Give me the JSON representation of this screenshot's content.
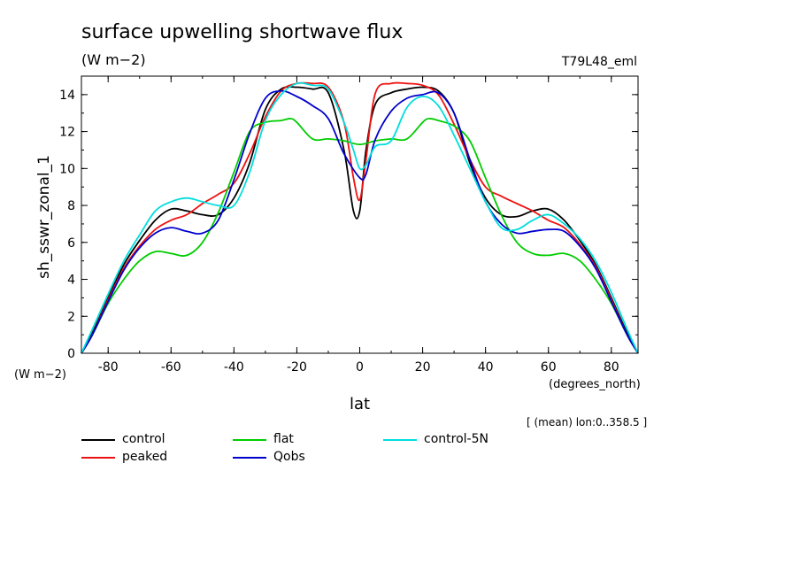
{
  "header": {
    "title": "surface upwelling shortwave flux",
    "units": "(W m−2)",
    "run_id": "T79L48_eml"
  },
  "footer": {
    "mean_note": "[ (mean) lon:0..358.5 ]"
  },
  "chart_data": {
    "type": "line",
    "title": "surface upwelling shortwave flux",
    "xlabel": "lat",
    "ylabel": "sh_sswr_zonal_1",
    "x_units": "(degrees_north)",
    "y_units": "(W m−2)",
    "xlim": [
      -88.5,
      88.5
    ],
    "ylim": [
      0,
      15
    ],
    "xticks": [
      -80,
      -60,
      -40,
      -20,
      0,
      20,
      40,
      60,
      80
    ],
    "yticks": [
      0,
      2,
      4,
      6,
      8,
      10,
      12,
      14
    ],
    "grid": false,
    "legend_position": "bottom",
    "series": [
      {
        "name": "control",
        "color": "#000000",
        "x": [
          -88.5,
          -85,
          -80,
          -75,
          -70,
          -65,
          -60,
          -55,
          -50,
          -45,
          -40,
          -35,
          -30,
          -25,
          -20,
          -15,
          -10,
          -5,
          -2,
          0,
          2,
          5,
          10,
          15,
          20,
          25,
          30,
          35,
          40,
          45,
          50,
          55,
          60,
          65,
          70,
          75,
          80,
          85,
          88.5
        ],
        "y": [
          0,
          1.1,
          3.0,
          4.8,
          6.1,
          7.2,
          7.8,
          7.7,
          7.5,
          7.5,
          8.4,
          10.3,
          13.2,
          14.3,
          14.4,
          14.3,
          14.1,
          11.0,
          7.7,
          7.7,
          11.0,
          13.5,
          14.1,
          14.3,
          14.4,
          14.2,
          13.0,
          10.3,
          8.4,
          7.5,
          7.4,
          7.7,
          7.8,
          7.2,
          6.1,
          4.8,
          3.0,
          1.1,
          0
        ]
      },
      {
        "name": "peaked",
        "color": "#ee1111",
        "x": [
          -88.5,
          -85,
          -80,
          -75,
          -70,
          -65,
          -60,
          -55,
          -50,
          -45,
          -40,
          -35,
          -30,
          -25,
          -20,
          -15,
          -10,
          -5,
          -2,
          0,
          2,
          5,
          10,
          15,
          20,
          25,
          30,
          35,
          40,
          45,
          50,
          55,
          60,
          65,
          70,
          75,
          80,
          85,
          88.5
        ],
        "y": [
          0,
          1.0,
          2.9,
          4.6,
          5.8,
          6.7,
          7.2,
          7.5,
          8.1,
          8.6,
          9.2,
          10.8,
          12.8,
          14.2,
          14.6,
          14.6,
          14.4,
          12.5,
          9.5,
          8.3,
          10.5,
          14.1,
          14.6,
          14.6,
          14.5,
          14.0,
          12.4,
          10.5,
          9.0,
          8.5,
          8.1,
          7.7,
          7.2,
          6.8,
          5.9,
          4.7,
          2.9,
          1.0,
          0
        ]
      },
      {
        "name": "flat",
        "color": "#00cc00",
        "x": [
          -88.5,
          -85,
          -80,
          -75,
          -70,
          -65,
          -60,
          -55,
          -50,
          -45,
          -40,
          -35,
          -30,
          -25,
          -22,
          -20,
          -15,
          -10,
          -5,
          0,
          5,
          10,
          15,
          20,
          22,
          25,
          30,
          35,
          40,
          45,
          50,
          55,
          60,
          65,
          70,
          75,
          80,
          85,
          88.5
        ],
        "y": [
          0,
          1.0,
          2.7,
          4.0,
          5.0,
          5.5,
          5.4,
          5.3,
          6.0,
          7.6,
          9.8,
          12.0,
          12.5,
          12.6,
          12.7,
          12.5,
          11.6,
          11.6,
          11.5,
          11.3,
          11.5,
          11.6,
          11.6,
          12.5,
          12.7,
          12.6,
          12.3,
          11.5,
          9.5,
          7.5,
          6.0,
          5.4,
          5.3,
          5.4,
          5.0,
          4.0,
          2.7,
          1.0,
          0
        ]
      },
      {
        "name": "Qobs",
        "color": "#0000cc",
        "x": [
          -88.5,
          -85,
          -80,
          -75,
          -70,
          -65,
          -60,
          -55,
          -50,
          -45,
          -40,
          -35,
          -30,
          -25,
          -20,
          -15,
          -10,
          -5,
          0,
          2,
          5,
          10,
          15,
          20,
          25,
          30,
          35,
          40,
          45,
          50,
          55,
          60,
          65,
          70,
          75,
          80,
          85,
          88.5
        ],
        "y": [
          0,
          1.0,
          2.8,
          4.5,
          5.7,
          6.5,
          6.8,
          6.6,
          6.5,
          7.2,
          9.4,
          11.9,
          13.8,
          14.2,
          13.9,
          13.4,
          12.7,
          10.8,
          9.5,
          9.7,
          11.6,
          13.1,
          13.8,
          14.0,
          14.1,
          13.0,
          10.5,
          8.2,
          7.0,
          6.5,
          6.6,
          6.7,
          6.6,
          5.8,
          4.6,
          2.8,
          1.0,
          0
        ]
      },
      {
        "name": "control-5N",
        "color": "#00dddd",
        "x": [
          -88.5,
          -85,
          -80,
          -75,
          -70,
          -65,
          -60,
          -55,
          -50,
          -45,
          -40,
          -35,
          -30,
          -25,
          -20,
          -15,
          -10,
          -5,
          -2,
          0,
          2,
          5,
          10,
          15,
          20,
          25,
          30,
          35,
          40,
          45,
          50,
          55,
          60,
          65,
          70,
          75,
          80,
          85,
          88.5
        ],
        "y": [
          0,
          1.3,
          3.2,
          5.0,
          6.4,
          7.7,
          8.2,
          8.4,
          8.2,
          8.0,
          8.0,
          9.8,
          12.6,
          14.0,
          14.6,
          14.5,
          14.3,
          12.5,
          11.0,
          10.0,
          10.2,
          11.2,
          11.5,
          13.3,
          13.9,
          13.4,
          11.8,
          10.0,
          8.2,
          6.8,
          6.7,
          7.2,
          7.5,
          7.0,
          6.2,
          5.0,
          3.3,
          1.3,
          0
        ]
      }
    ]
  }
}
